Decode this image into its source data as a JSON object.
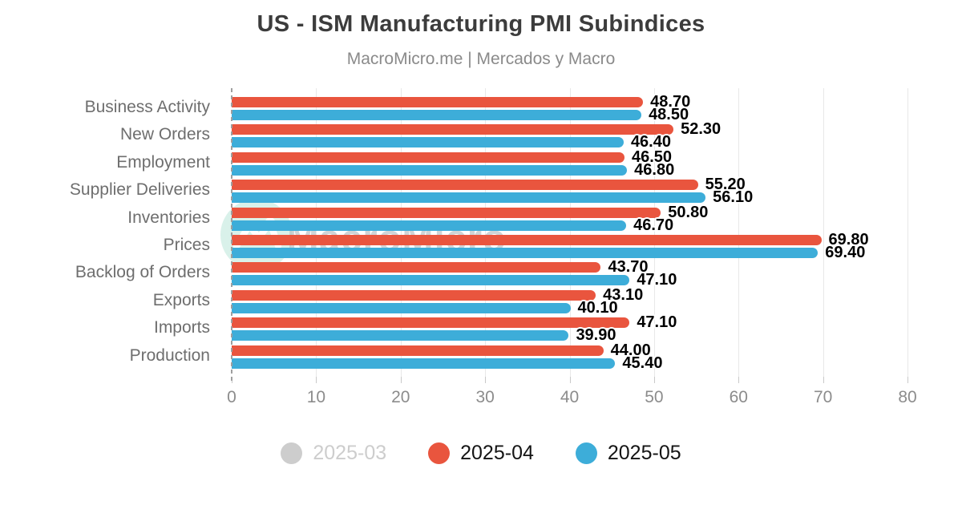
{
  "title": "US - ISM Manufacturing PMI Subindices",
  "subtitle": "MacroMicro.me | Mercados y Macro",
  "watermark": {
    "text": "MacroMicro"
  },
  "colors": {
    "bar_2025_04": "#e9553e",
    "bar_2025_05": "#3dadd9",
    "legend_disabled": "#cdcdcd",
    "grid": "#e8e8e8",
    "axis_line": "#9f9f9f",
    "tick": "#c9c9c9",
    "axis_text": "#8c8c8c",
    "category_text": "#6e6e6e",
    "value_text": "#000000",
    "watermark_circle": "#d9f1ea"
  },
  "chart_data": {
    "type": "bar",
    "orientation": "horizontal",
    "title": "US - ISM Manufacturing PMI Subindices",
    "subtitle": "MacroMicro.me | Mercados y Macro",
    "categories": [
      "Business Activity",
      "New Orders",
      "Employment",
      "Supplier Deliveries",
      "Inventories",
      "Prices",
      "Backlog of Orders",
      "Exports",
      "Imports",
      "Production"
    ],
    "series": [
      {
        "name": "2025-03",
        "hidden": true,
        "color": "#cdcdcd",
        "values": []
      },
      {
        "name": "2025-04",
        "hidden": false,
        "color": "#e9553e",
        "values": [
          48.7,
          52.3,
          46.5,
          55.2,
          50.8,
          69.8,
          43.7,
          43.1,
          47.1,
          44.0
        ]
      },
      {
        "name": "2025-05",
        "hidden": false,
        "color": "#3dadd9",
        "values": [
          48.5,
          46.4,
          46.8,
          56.1,
          46.7,
          69.4,
          47.1,
          40.1,
          39.9,
          45.4
        ]
      }
    ],
    "value_labels": {
      "2025-04": [
        "48.70",
        "52.30",
        "46.50",
        "55.20",
        "50.80",
        "69.80",
        "43.70",
        "43.10",
        "47.10",
        "44.00"
      ],
      "2025-05": [
        "48.50",
        "46.40",
        "46.80",
        "56.10",
        "46.70",
        "69.40",
        "47.10",
        "40.10",
        "39.90",
        "45.40"
      ]
    },
    "xlim": [
      0,
      80
    ],
    "x_ticks": [
      0,
      10,
      20,
      30,
      40,
      50,
      60,
      70,
      80
    ],
    "grid": true,
    "legend_position": "bottom"
  },
  "legend": {
    "items": [
      {
        "label": "2025-03",
        "color": "#cdcdcd",
        "disabled": true
      },
      {
        "label": "2025-04",
        "color": "#e9553e",
        "disabled": false
      },
      {
        "label": "2025-05",
        "color": "#3dadd9",
        "disabled": false
      }
    ]
  }
}
